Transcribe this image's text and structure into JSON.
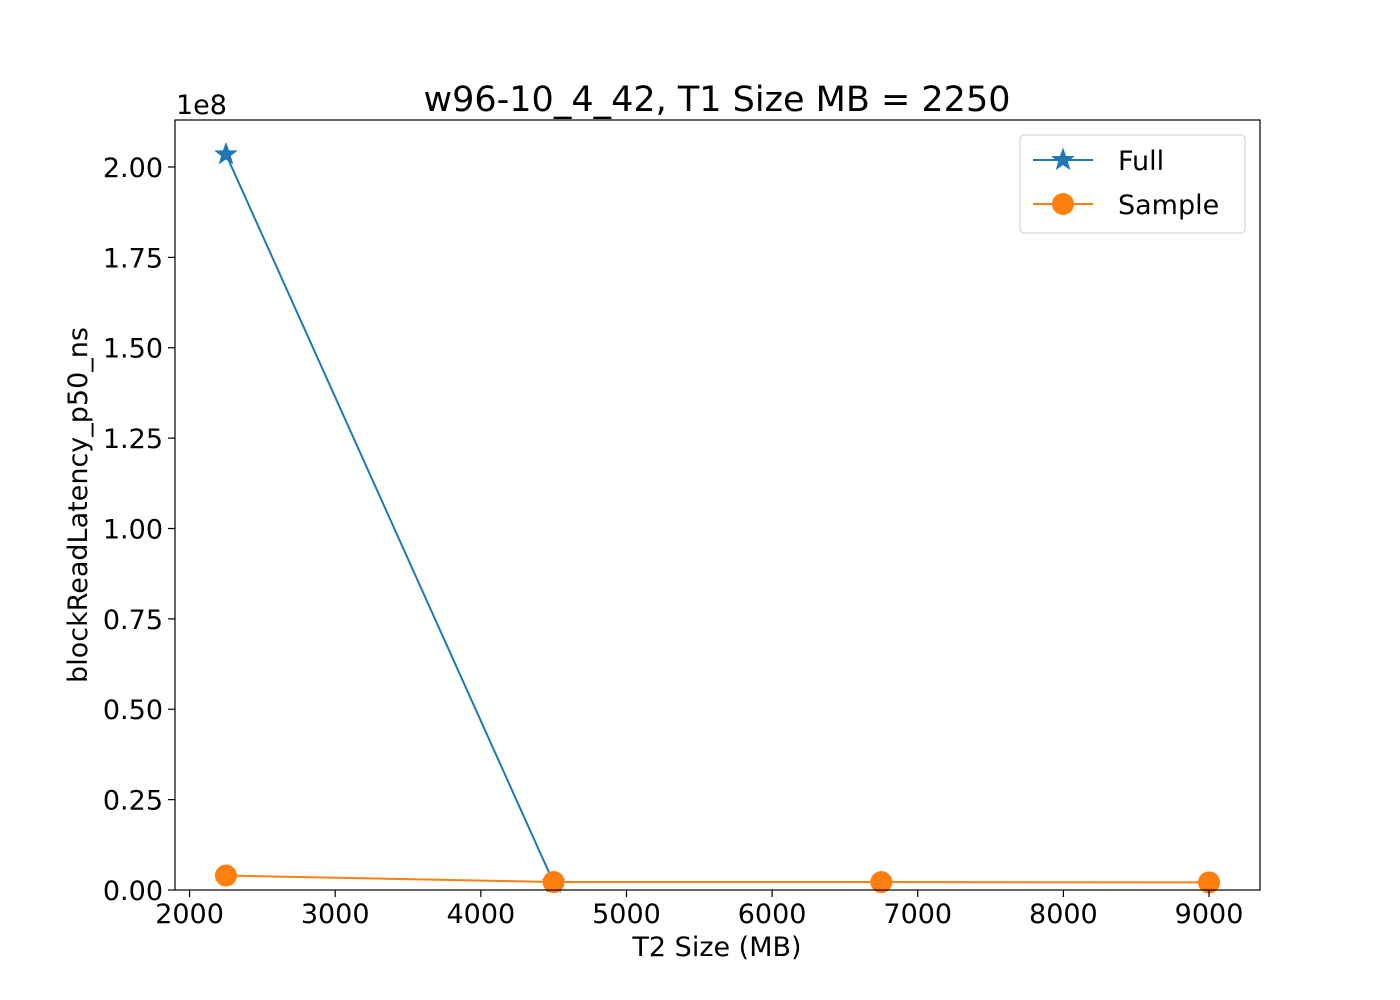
{
  "chart_data": {
    "type": "line",
    "title": "w96-10_4_42, T1 Size MB = 2250",
    "xlabel": "T2 Size (MB)",
    "ylabel": "blockReadLatency_p50_ns",
    "offset_label": "1e8",
    "x": [
      2250,
      4500,
      6750,
      9000
    ],
    "xlim": [
      1900,
      9350
    ],
    "ylim": [
      0,
      2.13
    ],
    "xticks": [
      2000,
      3000,
      4000,
      5000,
      6000,
      7000,
      8000,
      9000
    ],
    "xtick_labels": [
      "2000",
      "3000",
      "4000",
      "5000",
      "6000",
      "7000",
      "8000",
      "9000"
    ],
    "yticks": [
      0,
      0.25,
      0.5,
      0.75,
      1.0,
      1.25,
      1.5,
      1.75,
      2.0
    ],
    "ytick_labels": [
      "0.00",
      "0.25",
      "0.50",
      "0.75",
      "1.00",
      "1.25",
      "1.50",
      "1.75",
      "2.00"
    ],
    "grid": false,
    "legend_position": "top-right",
    "series": [
      {
        "name": "Full",
        "marker": "star",
        "color": "#1f77b4",
        "values": [
          2.035,
          0.02,
          null,
          null
        ]
      },
      {
        "name": "Sample",
        "marker": "circle",
        "color": "#ff7f0e",
        "values": [
          0.04,
          0.022,
          0.022,
          0.021
        ]
      }
    ]
  }
}
